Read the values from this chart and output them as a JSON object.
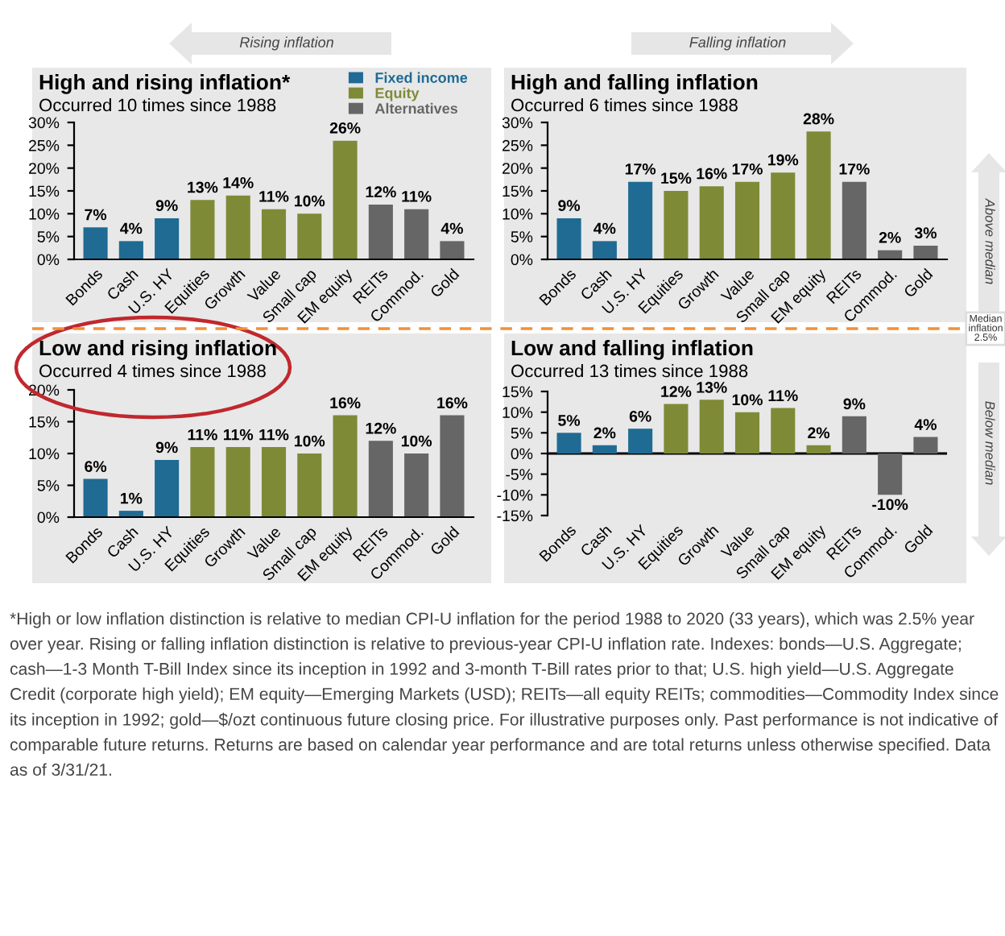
{
  "chart_data": [
    {
      "type": "bar",
      "title": "High and rising inflation*",
      "subtitle": "Occurred 10 times since 1988",
      "legend": "top right",
      "grid": false,
      "categories": [
        "Bonds",
        "Cash",
        "U.S. HY",
        "Equities",
        "Growth",
        "Value",
        "Small cap",
        "EM equity",
        "REITs",
        "Commod.",
        "Gold"
      ],
      "ylim": [
        0,
        30
      ],
      "yticks": [
        {
          "value": 0,
          "label": "0%"
        },
        {
          "value": 5,
          "label": "5%"
        },
        {
          "value": 10,
          "label": "10%"
        },
        {
          "value": 15,
          "label": "15%"
        },
        {
          "value": 20,
          "label": "20%"
        },
        {
          "value": 25,
          "label": "25%"
        },
        {
          "value": 30,
          "label": "30%"
        }
      ],
      "series": [
        {
          "name": "Fixed income",
          "color": "#1f6b94",
          "values": [
            7,
            4,
            9,
            null,
            null,
            null,
            null,
            null,
            null,
            null,
            null
          ],
          "value_labels": [
            "7%",
            "4%",
            "9%",
            null,
            null,
            null,
            null,
            null,
            null,
            null,
            null
          ]
        },
        {
          "name": "Equity",
          "color": "#7f8a37",
          "values": [
            null,
            null,
            null,
            13,
            14,
            11,
            10,
            26,
            null,
            null,
            null
          ],
          "value_labels": [
            null,
            null,
            null,
            "13%",
            "14%",
            "11%",
            "10%",
            "26%",
            null,
            null,
            null
          ]
        },
        {
          "name": "Alternatives",
          "color": "#666666",
          "values": [
            null,
            null,
            null,
            null,
            null,
            null,
            null,
            null,
            12,
            11,
            4
          ],
          "value_labels": [
            null,
            null,
            null,
            null,
            null,
            null,
            null,
            null,
            "12%",
            "11%",
            "4%"
          ]
        }
      ],
      "annotations": [
        "Rising inflation"
      ]
    },
    {
      "type": "bar",
      "title": "High and falling inflation",
      "subtitle": "Occurred 6 times since 1988",
      "grid": false,
      "categories": [
        "Bonds",
        "Cash",
        "U.S. HY",
        "Equities",
        "Growth",
        "Value",
        "Small cap",
        "EM equity",
        "REITs",
        "Commod.",
        "Gold"
      ],
      "ylim": [
        0,
        30
      ],
      "yticks": [
        {
          "value": 0,
          "label": "0%"
        },
        {
          "value": 5,
          "label": "5%"
        },
        {
          "value": 10,
          "label": "10%"
        },
        {
          "value": 15,
          "label": "15%"
        },
        {
          "value": 20,
          "label": "20%"
        },
        {
          "value": 25,
          "label": "25%"
        },
        {
          "value": 30,
          "label": "30%"
        }
      ],
      "series": [
        {
          "color": "#1f6b94",
          "values": [
            9,
            4,
            17,
            null,
            null,
            null,
            null,
            null,
            null,
            null,
            null
          ],
          "value_labels": [
            "9%",
            "4%",
            "17%",
            null,
            null,
            null,
            null,
            null,
            null,
            null,
            null
          ]
        },
        {
          "color": "#7f8a37",
          "values": [
            null,
            null,
            null,
            15,
            16,
            17,
            19,
            28,
            null,
            null,
            null
          ],
          "value_labels": [
            null,
            null,
            null,
            "15%",
            "16%",
            "17%",
            "19%",
            "28%",
            null,
            null,
            null
          ]
        },
        {
          "color": "#666666",
          "values": [
            null,
            null,
            null,
            null,
            null,
            null,
            null,
            null,
            17,
            2,
            3
          ],
          "value_labels": [
            null,
            null,
            null,
            null,
            null,
            null,
            null,
            null,
            "17%",
            "2%",
            "3%"
          ]
        }
      ],
      "annotations": [
        "Falling inflation",
        "Above median"
      ]
    },
    {
      "type": "bar",
      "title": "Low and rising inflation",
      "subtitle": "Occurred 4 times since 1988",
      "grid": false,
      "categories": [
        "Bonds",
        "Cash",
        "U.S. HY",
        "Equities",
        "Growth",
        "Value",
        "Small cap",
        "EM equity",
        "REITs",
        "Commod.",
        "Gold"
      ],
      "ylim": [
        0,
        20
      ],
      "yticks": [
        {
          "value": 0,
          "label": "0%"
        },
        {
          "value": 5,
          "label": "5%"
        },
        {
          "value": 10,
          "label": "10%"
        },
        {
          "value": 15,
          "label": "15%"
        },
        {
          "value": 20,
          "label": "20%"
        }
      ],
      "series": [
        {
          "color": "#1f6b94",
          "values": [
            6,
            1,
            9,
            null,
            null,
            null,
            null,
            null,
            null,
            null,
            null
          ],
          "value_labels": [
            "6%",
            "1%",
            "9%",
            null,
            null,
            null,
            null,
            null,
            null,
            null,
            null
          ]
        },
        {
          "color": "#7f8a37",
          "values": [
            null,
            null,
            null,
            11,
            11,
            11,
            10,
            16,
            null,
            null,
            null
          ],
          "value_labels": [
            null,
            null,
            null,
            "11%",
            "11%",
            "11%",
            "10%",
            "16%",
            null,
            null,
            null
          ]
        },
        {
          "color": "#666666",
          "values": [
            null,
            null,
            null,
            null,
            null,
            null,
            null,
            null,
            12,
            10,
            16
          ],
          "value_labels": [
            null,
            null,
            null,
            null,
            null,
            null,
            null,
            null,
            "12%",
            "10%",
            "16%"
          ]
        }
      ]
    },
    {
      "type": "bar",
      "title": "Low and falling inflation",
      "subtitle": "Occurred 13 times since 1988",
      "grid": false,
      "categories": [
        "Bonds",
        "Cash",
        "U.S. HY",
        "Equities",
        "Growth",
        "Value",
        "Small cap",
        "EM equity",
        "REITs",
        "Commod.",
        "Gold"
      ],
      "ref_lines": [
        {
          "axis": "y",
          "value": 0,
          "color": "#000000"
        }
      ],
      "ylim": [
        -15,
        15
      ],
      "yticks": [
        {
          "value": -15,
          "label": "-15%"
        },
        {
          "value": -10,
          "label": "-10%"
        },
        {
          "value": -5,
          "label": "-5%"
        },
        {
          "value": 0,
          "label": "0%"
        },
        {
          "value": 5,
          "label": "5%"
        },
        {
          "value": 10,
          "label": "10%"
        },
        {
          "value": 15,
          "label": "15%"
        }
      ],
      "series": [
        {
          "color": "#1f6b94",
          "values": [
            5,
            2,
            6,
            null,
            null,
            null,
            null,
            null,
            null,
            null,
            null
          ],
          "value_labels": [
            "5%",
            "2%",
            "6%",
            null,
            null,
            null,
            null,
            null,
            null,
            null,
            null
          ]
        },
        {
          "color": "#7f8a37",
          "values": [
            null,
            null,
            null,
            12,
            13,
            10,
            11,
            2,
            null,
            null,
            null
          ],
          "value_labels": [
            null,
            null,
            null,
            "12%",
            "13%",
            "10%",
            "11%",
            "2%",
            null,
            null,
            null
          ]
        },
        {
          "color": "#666666",
          "values": [
            null,
            null,
            null,
            null,
            null,
            null,
            null,
            null,
            9,
            -10,
            4
          ],
          "value_labels": [
            null,
            null,
            null,
            null,
            null,
            null,
            null,
            null,
            "9%",
            "-10%",
            "4%"
          ]
        }
      ],
      "annotations": [
        "Below median",
        "Median inflation 2.5%",
        "*High or low inflation distinction is relative to median CPI-U inflation for the period 1988 to 2020 (33 years), which was 2.5% year over year. Rising or falling inflation distinction is relative to previous-year CPI-U inflation rate. Indexes: bonds—U.S. Aggregate; cash—1-3 Month T-Bill Index since its inception in 1992 and 3-month T-Bill rates prior to that; U.S. high yield—U.S. Aggregate Credit (corporate high yield); EM equity—Emerging Markets (USD); REITs—all equity REITs; commodities—Commodity Index since its inception in 1992; gold—$/ozt continuous future closing price. For illustrative purposes only. Past performance is not indicative of comparable future returns. Returns are based on calendar year performance and are total returns unless otherwise specified. Data as of 3/31/21."
      ]
    }
  ]
}
